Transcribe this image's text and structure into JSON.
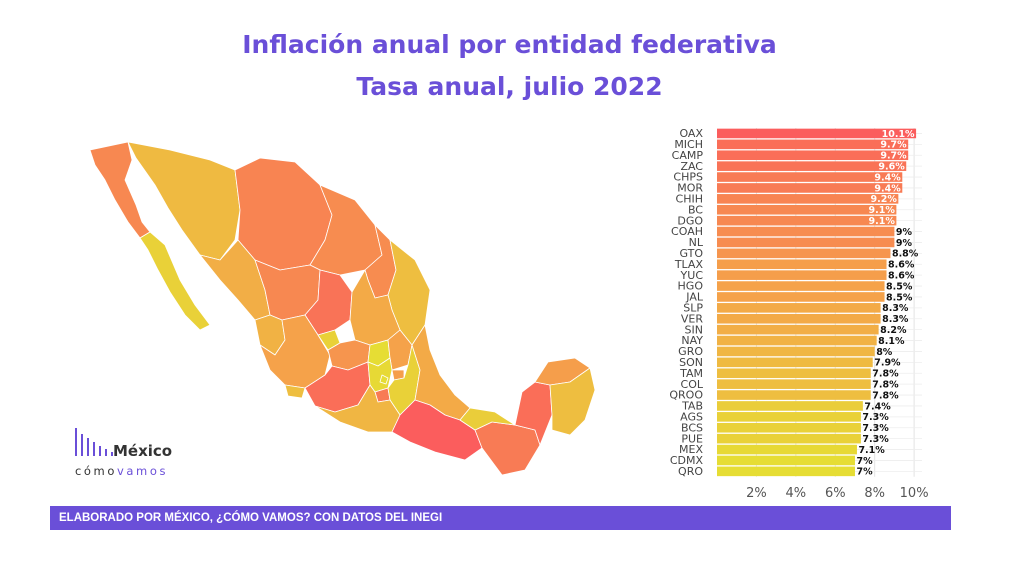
{
  "title": "Inflación anual por entidad federativa",
  "subtitle": "Tasa anual, julio 2022",
  "logo": {
    "name": "México",
    "sub_light": "cómo",
    "sub_bold": "vamos"
  },
  "footer": "ELABORADO POR MÉXICO, ¿CÓMO VAMOS? CON DATOS DEL INEGI",
  "colors": {
    "accent": "#6a4fd8",
    "high": "#fb5d5d",
    "mid": "#f5a24a",
    "low": "#e6dd34"
  },
  "chart_data": {
    "type": "bar",
    "orientation": "horizontal",
    "categories": [
      "OAX",
      "MICH",
      "CAMP",
      "ZAC",
      "CHPS",
      "MOR",
      "CHIH",
      "BC",
      "DGO",
      "COAH",
      "NL",
      "GTO",
      "TLAX",
      "YUC",
      "HGO",
      "JAL",
      "SLP",
      "VER",
      "SIN",
      "NAY",
      "GRO",
      "SON",
      "TAM",
      "COL",
      "QROO",
      "TAB",
      "AGS",
      "BCS",
      "PUE",
      "MEX",
      "CDMX",
      "QRO"
    ],
    "values": [
      10.1,
      9.7,
      9.7,
      9.6,
      9.4,
      9.4,
      9.2,
      9.1,
      9.1,
      9,
      9,
      8.8,
      8.6,
      8.6,
      8.5,
      8.5,
      8.3,
      8.3,
      8.2,
      8.1,
      8,
      7.9,
      7.8,
      7.8,
      7.8,
      7.4,
      7.3,
      7.3,
      7.3,
      7.1,
      7,
      7
    ],
    "labels": [
      "10.1%",
      "9.7%",
      "9.7%",
      "9.6%",
      "9.4%",
      "9.4%",
      "9.2%",
      "9.1%",
      "9.1%",
      "9%",
      "9%",
      "8.8%",
      "8.6%",
      "8.6%",
      "8.5%",
      "8.5%",
      "8.3%",
      "8.3%",
      "8.2%",
      "8.1%",
      "8%",
      "7.9%",
      "7.8%",
      "7.8%",
      "7.8%",
      "7.4%",
      "7.3%",
      "7.3%",
      "7.3%",
      "7.1%",
      "7%",
      "7%"
    ],
    "x_ticks": [
      "2%",
      "4%",
      "6%",
      "8%",
      "10%"
    ],
    "x_tick_values": [
      2,
      4,
      6,
      8,
      10
    ],
    "xlim": [
      0,
      10.4
    ],
    "grid": true
  },
  "map_data": {
    "legend": "choropleth",
    "states": [
      "BC",
      "BCS",
      "SON",
      "CHIH",
      "COAH",
      "NL",
      "TAM",
      "SIN",
      "DGO",
      "ZAC",
      "NAY",
      "JAL",
      "AGS",
      "SLP",
      "GTO",
      "QRO",
      "HGO",
      "COL",
      "MICH",
      "MEX",
      "CDMX",
      "MOR",
      "TLAX",
      "PUE",
      "VER",
      "GRO",
      "OAX",
      "CHPS",
      "TAB",
      "CAMP",
      "YUC",
      "QROO"
    ],
    "values": [
      9.1,
      7.3,
      7.9,
      9.2,
      9,
      9,
      7.8,
      8.2,
      9.1,
      9.6,
      8.1,
      8.5,
      7.3,
      8.3,
      8.8,
      7,
      8.5,
      7.8,
      9.7,
      7.1,
      7,
      9.4,
      8.6,
      7.3,
      8.3,
      8,
      10.1,
      9.4,
      7.4,
      9.7,
      8.6,
      7.8
    ]
  }
}
